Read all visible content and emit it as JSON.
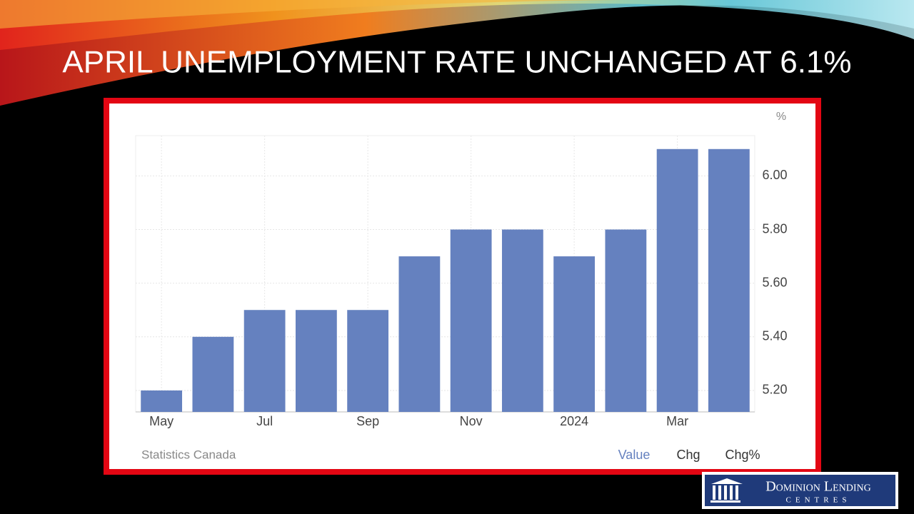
{
  "slide": {
    "title": "APRIL UNEMPLOYMENT RATE UNCHANGED AT 6.1%"
  },
  "chart_data": {
    "type": "bar",
    "unit_label": "%",
    "categories": [
      "May",
      null,
      "Jul",
      null,
      "Sep",
      null,
      "Nov",
      null,
      "2024",
      null,
      "Mar",
      null
    ],
    "values": [
      5.2,
      5.4,
      5.5,
      5.5,
      5.5,
      5.7,
      5.8,
      5.8,
      5.7,
      5.8,
      6.1,
      6.1
    ],
    "color": "#6581bf",
    "ylim": [
      5.12,
      6.15
    ],
    "yticks": [
      {
        "value": 5.2,
        "label": "5.20"
      },
      {
        "value": 5.4,
        "label": "5.40"
      },
      {
        "value": 5.6,
        "label": "5.60"
      },
      {
        "value": 5.8,
        "label": "5.80"
      },
      {
        "value": 6.0,
        "label": "6.00"
      }
    ],
    "grid": true,
    "source": "Statistics Canada",
    "tabs": [
      "Value",
      "Chg",
      "Chg%"
    ]
  },
  "logo": {
    "name": "Dominion Lending",
    "subtitle": "CENTRES"
  }
}
